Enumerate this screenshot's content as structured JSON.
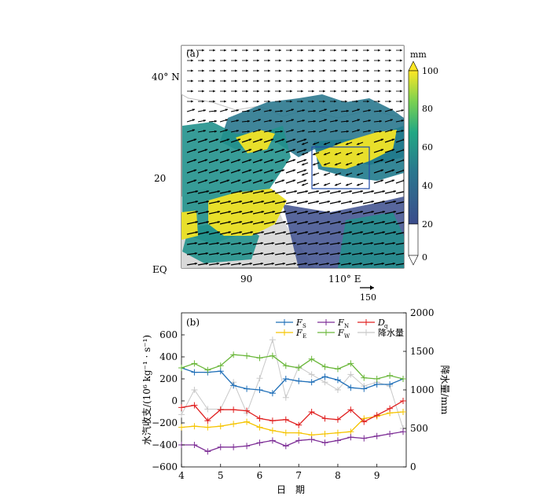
{
  "chart_data": [
    {
      "panel_label": "(a)",
      "type": "heatmap",
      "ylabel_ticks": [
        "40° N",
        "20",
        "EQ"
      ],
      "xlabel_ticks": [
        "90",
        "110° E"
      ],
      "colorbar": {
        "unit": "mm",
        "ticks": [
          "0",
          "20",
          "40",
          "60",
          "80",
          "100"
        ],
        "range": [
          0,
          100
        ]
      },
      "reference_vector": {
        "label": "150",
        "value": 150
      },
      "box": {
        "lon": [
          105,
          120
        ],
        "lat": [
          15,
          25
        ]
      },
      "colors": {
        "land": "#c8c8c8",
        "low": "#3b4c8c",
        "mid": "#21918c",
        "high": "#e8df2b",
        "box": "#1f4aa8"
      }
    },
    {
      "panel_label": "(b)",
      "type": "line",
      "xlabel": "日　期",
      "ylabel": "水汽收支/(10⁶ kg⁻¹ · s⁻¹)",
      "y2label": "降水量/mm",
      "xlim": [
        4,
        9.75
      ],
      "ylim": [
        -600,
        800
      ],
      "y2lim": [
        0,
        2000
      ],
      "xticks": [
        "4",
        "5",
        "6",
        "7",
        "8",
        "9"
      ],
      "yticks": [
        "−600",
        "−400",
        "−200",
        "0",
        "200",
        "400",
        "600"
      ],
      "y2ticks": [
        "0",
        "500",
        "1000",
        "1500",
        "2000"
      ],
      "x": [
        4.0,
        4.33,
        4.67,
        5.0,
        5.33,
        5.67,
        6.0,
        6.33,
        6.67,
        7.0,
        7.33,
        7.67,
        8.0,
        8.33,
        8.67,
        9.0,
        9.33,
        9.67
      ],
      "series": [
        {
          "name": "F",
          "subscript": "S",
          "color": "#1f6fb8",
          "axis": "left",
          "values": [
            300,
            260,
            260,
            270,
            140,
            110,
            100,
            70,
            200,
            180,
            170,
            220,
            190,
            120,
            110,
            150,
            150,
            200
          ]
        },
        {
          "name": "F",
          "subscript": "E",
          "color": "#f5c400",
          "axis": "left",
          "values": [
            -240,
            -230,
            -240,
            -230,
            -210,
            -190,
            -240,
            -270,
            -290,
            -290,
            -310,
            -300,
            -290,
            -280,
            -160,
            -140,
            -110,
            -100
          ]
        },
        {
          "name": "F",
          "subscript": "N",
          "color": "#7d2e96",
          "axis": "left",
          "values": [
            -400,
            -400,
            -460,
            -420,
            -420,
            -410,
            -380,
            -360,
            -410,
            -360,
            -350,
            -380,
            -360,
            -330,
            -340,
            -320,
            -300,
            -280
          ]
        },
        {
          "name": "F",
          "subscript": "W",
          "color": "#6ab73a",
          "axis": "left",
          "values": [
            300,
            340,
            280,
            320,
            420,
            410,
            390,
            410,
            320,
            300,
            380,
            310,
            290,
            340,
            210,
            200,
            230,
            200
          ]
        },
        {
          "name": "D",
          "subscript": "q",
          "color": "#e02020",
          "axis": "left",
          "values": [
            -60,
            -40,
            -180,
            -80,
            -80,
            -90,
            -160,
            -180,
            -170,
            -220,
            -100,
            -160,
            -170,
            -80,
            -190,
            -130,
            -70,
            0
          ]
        },
        {
          "name": "降水量",
          "subscript": "",
          "color": "#c8c8c8",
          "axis": "right",
          "values": [
            680,
            1000,
            750,
            750,
            1100,
            700,
            1150,
            1650,
            900,
            1300,
            1200,
            1100,
            1000,
            1200,
            1050,
            1100,
            1050,
            500
          ]
        }
      ]
    }
  ]
}
